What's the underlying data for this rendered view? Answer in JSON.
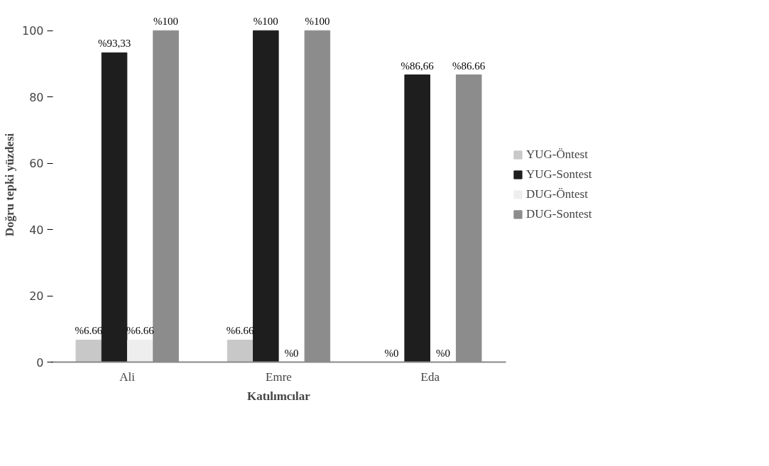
{
  "chart_data": {
    "type": "bar",
    "xlabel": "Katılımcılar",
    "ylabel": "Doğru tepki yüzdesi",
    "categories": [
      "Ali",
      "Emre",
      "Eda"
    ],
    "series": [
      {
        "name": "YUG-Öntest",
        "color": "#c8c8c8",
        "values": [
          6.66,
          6.66,
          0
        ],
        "value_labels": [
          "%6.66",
          "%6.66",
          "%0"
        ]
      },
      {
        "name": "YUG-Sontest",
        "color": "#1e1e1e",
        "values": [
          93.33,
          100,
          86.66
        ],
        "value_labels": [
          "%93,33",
          "%100",
          "%86,66"
        ]
      },
      {
        "name": "DUG-Öntest",
        "color": "#eeeeee",
        "values": [
          6.66,
          0,
          0
        ],
        "value_labels": [
          "%6.66",
          "%0",
          "%0"
        ]
      },
      {
        "name": "DUG-Sontest",
        "color": "#8c8c8c",
        "values": [
          100,
          100,
          86.66
        ],
        "value_labels": [
          "%100",
          "%100",
          "%86.66"
        ]
      }
    ],
    "ylim": [
      0,
      100
    ],
    "yticks": [
      0,
      20,
      40,
      60,
      80,
      100
    ],
    "grid": false,
    "legend": "right"
  }
}
